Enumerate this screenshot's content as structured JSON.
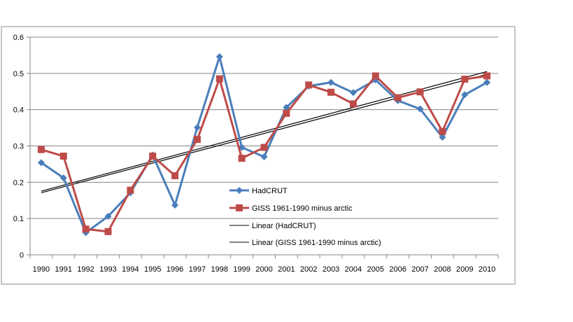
{
  "chart_data": {
    "type": "line",
    "title": "",
    "xlabel": "",
    "ylabel": "",
    "x": [
      "1990",
      "1991",
      "1992",
      "1993",
      "1994",
      "1995",
      "1996",
      "1997",
      "1998",
      "1999",
      "2000",
      "2001",
      "2002",
      "2003",
      "2004",
      "2005",
      "2006",
      "2007",
      "2008",
      "2009",
      "2010"
    ],
    "ylim": [
      0,
      0.6
    ],
    "yticks": [
      "0",
      "0.1",
      "0.2",
      "0.3",
      "0.4",
      "0.5",
      "0.6"
    ],
    "grid": true,
    "legend_position": "center",
    "series": [
      {
        "name": "HadCRUT",
        "color": "#4a7ebb",
        "marker": "diamond",
        "values": [
          0.254,
          0.212,
          0.061,
          0.106,
          0.171,
          0.275,
          0.137,
          0.351,
          0.546,
          0.296,
          0.27,
          0.406,
          0.465,
          0.475,
          0.447,
          0.482,
          0.425,
          0.402,
          0.324,
          0.441,
          0.475
        ]
      },
      {
        "name": "GISS 1961-1990 minus arctic",
        "color": "#be4b48",
        "marker": "square",
        "values": [
          0.29,
          0.272,
          0.071,
          0.064,
          0.178,
          0.272,
          0.218,
          0.318,
          0.485,
          0.266,
          0.296,
          0.39,
          0.468,
          0.448,
          0.416,
          0.493,
          0.433,
          0.449,
          0.34,
          0.484,
          0.493
        ]
      }
    ],
    "trendlines": [
      {
        "name": "Linear (HadCRUT)",
        "color": "#000000"
      },
      {
        "name": "Linear (GISS 1961-1990 minus arctic)",
        "color": "#000000"
      }
    ]
  }
}
